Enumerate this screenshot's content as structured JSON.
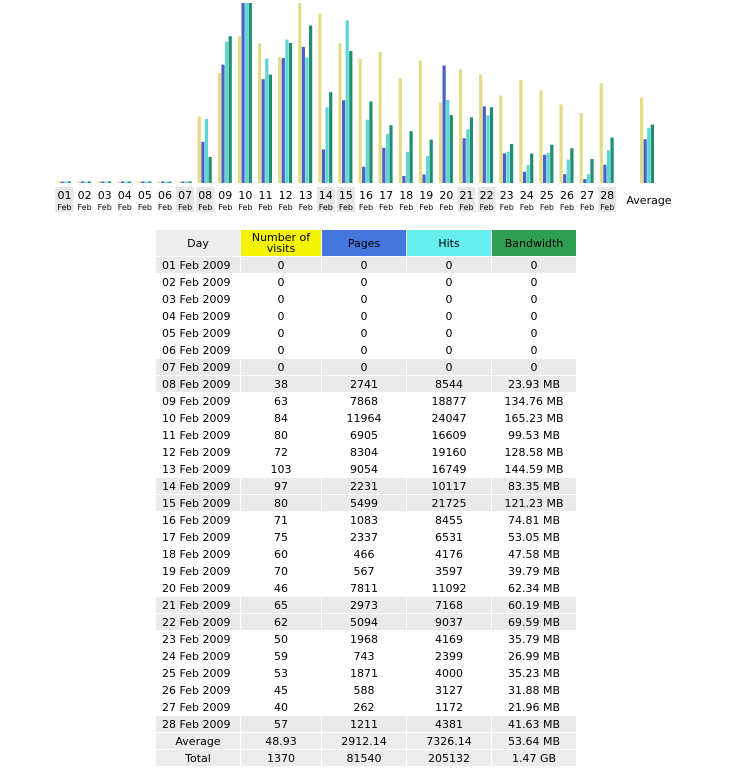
{
  "chart_data": {
    "type": "bar",
    "categories": [
      "01",
      "02",
      "03",
      "04",
      "05",
      "06",
      "07",
      "08",
      "09",
      "10",
      "11",
      "12",
      "13",
      "14",
      "15",
      "16",
      "17",
      "18",
      "19",
      "20",
      "21",
      "22",
      "23",
      "24",
      "25",
      "26",
      "27",
      "28"
    ],
    "month_label": "Feb",
    "weekend_days": [
      "01",
      "07",
      "08",
      "14",
      "15",
      "21",
      "22",
      "28"
    ],
    "average_label": "Average",
    "series": [
      {
        "name": "Number of visits",
        "color": "#e4dc88",
        "values": [
          0,
          0,
          0,
          0,
          0,
          0,
          0,
          38,
          63,
          84,
          80,
          72,
          103,
          97,
          80,
          71,
          75,
          60,
          70,
          46,
          65,
          62,
          50,
          59,
          53,
          45,
          40,
          57
        ],
        "average": 48.93
      },
      {
        "name": "Pages",
        "color": "#4a62c8",
        "values": [
          0,
          0,
          0,
          0,
          0,
          0,
          0,
          2741,
          7868,
          11964,
          6905,
          8304,
          9054,
          2231,
          5499,
          1083,
          2337,
          466,
          567,
          7811,
          2973,
          5094,
          1968,
          743,
          1871,
          588,
          262,
          1211
        ],
        "average": 2912.14
      },
      {
        "name": "Hits",
        "color": "#5ed6d6",
        "values": [
          0,
          0,
          0,
          0,
          0,
          0,
          0,
          8544,
          18877,
          24047,
          16609,
          19160,
          16749,
          10117,
          21725,
          8455,
          6531,
          4176,
          3597,
          11092,
          7168,
          9037,
          4169,
          2399,
          4000,
          3127,
          1172,
          4381
        ],
        "average": 7326.14
      },
      {
        "name": "Bandwidth",
        "color": "#1e8e72",
        "values": [
          0,
          0,
          0,
          0,
          0,
          0,
          0,
          23.93,
          134.76,
          165.23,
          99.53,
          128.58,
          144.59,
          83.35,
          121.23,
          74.81,
          53.05,
          47.58,
          39.79,
          62.34,
          60.19,
          69.59,
          35.79,
          26.99,
          35.23,
          31.88,
          21.96,
          41.63
        ],
        "average": 53.64,
        "unit": "MB"
      }
    ]
  },
  "table": {
    "headers": {
      "day": "Day",
      "visits": "Number of visits",
      "pages": "Pages",
      "hits": "Hits",
      "bandwidth": "Bandwidth"
    },
    "rows": [
      {
        "day": "01 Feb 2009",
        "visits": "0",
        "pages": "0",
        "hits": "0",
        "bandwidth": "0",
        "weekend": true
      },
      {
        "day": "02 Feb 2009",
        "visits": "0",
        "pages": "0",
        "hits": "0",
        "bandwidth": "0",
        "weekend": false
      },
      {
        "day": "03 Feb 2009",
        "visits": "0",
        "pages": "0",
        "hits": "0",
        "bandwidth": "0",
        "weekend": false
      },
      {
        "day": "04 Feb 2009",
        "visits": "0",
        "pages": "0",
        "hits": "0",
        "bandwidth": "0",
        "weekend": false
      },
      {
        "day": "05 Feb 2009",
        "visits": "0",
        "pages": "0",
        "hits": "0",
        "bandwidth": "0",
        "weekend": false
      },
      {
        "day": "06 Feb 2009",
        "visits": "0",
        "pages": "0",
        "hits": "0",
        "bandwidth": "0",
        "weekend": false
      },
      {
        "day": "07 Feb 2009",
        "visits": "0",
        "pages": "0",
        "hits": "0",
        "bandwidth": "0",
        "weekend": true
      },
      {
        "day": "08 Feb 2009",
        "visits": "38",
        "pages": "2741",
        "hits": "8544",
        "bandwidth": "23.93 MB",
        "weekend": true
      },
      {
        "day": "09 Feb 2009",
        "visits": "63",
        "pages": "7868",
        "hits": "18877",
        "bandwidth": "134.76 MB",
        "weekend": false
      },
      {
        "day": "10 Feb 2009",
        "visits": "84",
        "pages": "11964",
        "hits": "24047",
        "bandwidth": "165.23 MB",
        "weekend": false
      },
      {
        "day": "11 Feb 2009",
        "visits": "80",
        "pages": "6905",
        "hits": "16609",
        "bandwidth": "99.53 MB",
        "weekend": false
      },
      {
        "day": "12 Feb 2009",
        "visits": "72",
        "pages": "8304",
        "hits": "19160",
        "bandwidth": "128.58 MB",
        "weekend": false
      },
      {
        "day": "13 Feb 2009",
        "visits": "103",
        "pages": "9054",
        "hits": "16749",
        "bandwidth": "144.59 MB",
        "weekend": false
      },
      {
        "day": "14 Feb 2009",
        "visits": "97",
        "pages": "2231",
        "hits": "10117",
        "bandwidth": "83.35 MB",
        "weekend": true
      },
      {
        "day": "15 Feb 2009",
        "visits": "80",
        "pages": "5499",
        "hits": "21725",
        "bandwidth": "121.23 MB",
        "weekend": true
      },
      {
        "day": "16 Feb 2009",
        "visits": "71",
        "pages": "1083",
        "hits": "8455",
        "bandwidth": "74.81 MB",
        "weekend": false
      },
      {
        "day": "17 Feb 2009",
        "visits": "75",
        "pages": "2337",
        "hits": "6531",
        "bandwidth": "53.05 MB",
        "weekend": false
      },
      {
        "day": "18 Feb 2009",
        "visits": "60",
        "pages": "466",
        "hits": "4176",
        "bandwidth": "47.58 MB",
        "weekend": false
      },
      {
        "day": "19 Feb 2009",
        "visits": "70",
        "pages": "567",
        "hits": "3597",
        "bandwidth": "39.79 MB",
        "weekend": false
      },
      {
        "day": "20 Feb 2009",
        "visits": "46",
        "pages": "7811",
        "hits": "11092",
        "bandwidth": "62.34 MB",
        "weekend": false
      },
      {
        "day": "21 Feb 2009",
        "visits": "65",
        "pages": "2973",
        "hits": "7168",
        "bandwidth": "60.19 MB",
        "weekend": true
      },
      {
        "day": "22 Feb 2009",
        "visits": "62",
        "pages": "5094",
        "hits": "9037",
        "bandwidth": "69.59 MB",
        "weekend": true
      },
      {
        "day": "23 Feb 2009",
        "visits": "50",
        "pages": "1968",
        "hits": "4169",
        "bandwidth": "35.79 MB",
        "weekend": false
      },
      {
        "day": "24 Feb 2009",
        "visits": "59",
        "pages": "743",
        "hits": "2399",
        "bandwidth": "26.99 MB",
        "weekend": false
      },
      {
        "day": "25 Feb 2009",
        "visits": "53",
        "pages": "1871",
        "hits": "4000",
        "bandwidth": "35.23 MB",
        "weekend": false
      },
      {
        "day": "26 Feb 2009",
        "visits": "45",
        "pages": "588",
        "hits": "3127",
        "bandwidth": "31.88 MB",
        "weekend": false
      },
      {
        "day": "27 Feb 2009",
        "visits": "40",
        "pages": "262",
        "hits": "1172",
        "bandwidth": "21.96 MB",
        "weekend": false
      },
      {
        "day": "28 Feb 2009",
        "visits": "57",
        "pages": "1211",
        "hits": "4381",
        "bandwidth": "41.63 MB",
        "weekend": true
      }
    ],
    "average": {
      "label": "Average",
      "visits": "48.93",
      "pages": "2912.14",
      "hits": "7326.14",
      "bandwidth": "53.64 MB"
    },
    "total": {
      "label": "Total",
      "visits": "1370",
      "pages": "81540",
      "hits": "205132",
      "bandwidth": "1.47 GB"
    }
  }
}
